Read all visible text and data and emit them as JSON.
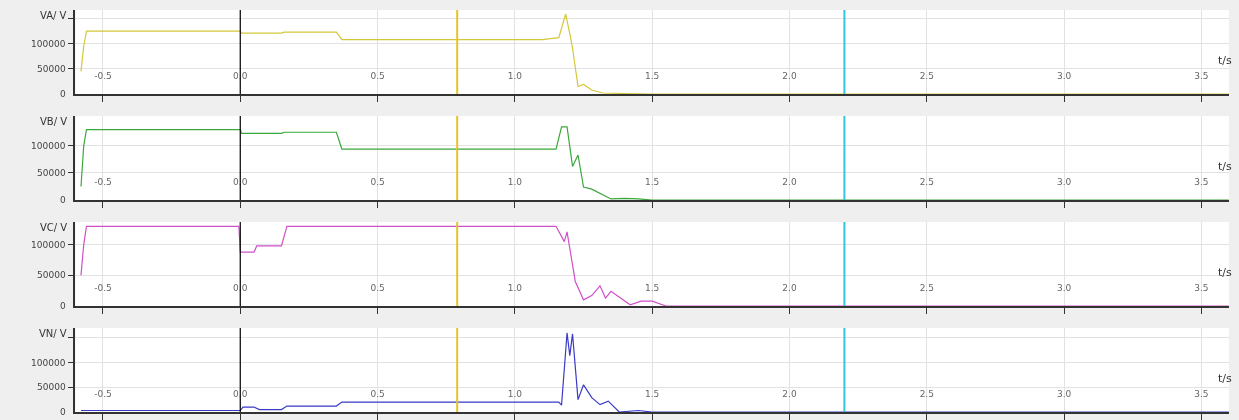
{
  "chart_data": [
    {
      "type": "line",
      "ylabel": "VA/ V",
      "xlabel": "t/s",
      "xlim": [
        -0.6,
        3.6
      ],
      "xticks": [
        -0.5,
        {
          "value": 0,
          "label": "0.0"
        },
        0.5,
        {
          "value": 1,
          "label": "1.0"
        },
        1.5,
        {
          "value": 2,
          "label": "2.0"
        },
        2.5,
        {
          "value": 3,
          "label": "3.0"
        },
        3.5
      ],
      "ylim": [
        0,
        167000
      ],
      "yticks": [
        0,
        50000,
        100000,
        {
          "value": 150000,
          "label": null
        }
      ],
      "grid": true,
      "series": [
        {
          "color": "#d4c83a",
          "x": [
            -0.58,
            -0.57,
            -0.56,
            0.0,
            0.005,
            0.15,
            0.16,
            0.35,
            0.37,
            1.1,
            1.13,
            1.16,
            1.185,
            1.2,
            1.21,
            1.23,
            1.25,
            1.28,
            1.32,
            1.4,
            1.5,
            3.6
          ],
          "values": [
            45000,
            95000,
            125000,
            125000,
            121000,
            121000,
            123000,
            123000,
            108000,
            108000,
            110000,
            112000,
            159000,
            120000,
            91000,
            15000,
            19000,
            8000,
            2000,
            1000,
            0,
            0
          ]
        }
      ],
      "ref_lines": [
        {
          "axis": "x",
          "value": 0,
          "color": "#000000"
        },
        {
          "axis": "x",
          "value": 0.79,
          "color": "#e6c229"
        },
        {
          "axis": "x",
          "value": 2.2,
          "color": "#35c3e0"
        }
      ]
    },
    {
      "type": "line",
      "ylabel": "VB/ V",
      "xlabel": "t/s",
      "xlim": [
        -0.6,
        3.6
      ],
      "xticks": [
        -0.5,
        {
          "value": 0,
          "label": "0.0"
        },
        0.5,
        {
          "value": 1,
          "label": "1.0"
        },
        1.5,
        {
          "value": 2,
          "label": "2.0"
        },
        2.5,
        {
          "value": 3,
          "label": "3.0"
        },
        3.5
      ],
      "ylim": [
        0,
        155000
      ],
      "yticks": [
        0,
        50000,
        100000
      ],
      "grid": true,
      "series": [
        {
          "color": "#3aa83a",
          "x": [
            -0.58,
            -0.57,
            -0.56,
            0.0,
            0.005,
            0.15,
            0.16,
            0.35,
            0.37,
            1.15,
            1.17,
            1.19,
            1.21,
            1.23,
            1.25,
            1.28,
            1.35,
            1.4,
            1.45,
            1.5,
            3.6
          ],
          "values": [
            25000,
            100000,
            130000,
            130000,
            123000,
            123000,
            125000,
            125000,
            94000,
            94000,
            135000,
            135000,
            62000,
            83000,
            24000,
            20000,
            2000,
            3000,
            2000,
            0,
            0
          ]
        }
      ],
      "ref_lines": [
        {
          "axis": "x",
          "value": 0,
          "color": "#000000"
        },
        {
          "axis": "x",
          "value": 0.79,
          "color": "#e6c229"
        },
        {
          "axis": "x",
          "value": 2.2,
          "color": "#35c3e0"
        }
      ]
    },
    {
      "type": "line",
      "ylabel": "VC/ V",
      "xlabel": "t/s",
      "xlim": [
        -0.6,
        3.6
      ],
      "xticks": [
        -0.5,
        {
          "value": 0,
          "label": "0.0"
        },
        0.5,
        {
          "value": 1,
          "label": "1.0"
        },
        1.5,
        {
          "value": 2,
          "label": "2.0"
        },
        2.5,
        {
          "value": 3,
          "label": "3.0"
        },
        3.5
      ],
      "ylim": [
        0,
        137000
      ],
      "yticks": [
        0,
        50000,
        100000
      ],
      "grid": true,
      "series": [
        {
          "color": "#d050c8",
          "x": [
            -0.58,
            -0.57,
            -0.56,
            -0.005,
            0.0,
            0.05,
            0.06,
            0.15,
            0.17,
            1.15,
            1.18,
            1.19,
            1.22,
            1.25,
            1.28,
            1.31,
            1.33,
            1.35,
            1.42,
            1.46,
            1.5,
            1.55,
            3.6
          ],
          "values": [
            50000,
            100000,
            130000,
            130000,
            88000,
            88000,
            98000,
            98000,
            130000,
            130000,
            105000,
            121000,
            40000,
            10000,
            17000,
            33000,
            13000,
            24000,
            2000,
            8000,
            8000,
            0,
            0
          ]
        }
      ],
      "ref_lines": [
        {
          "axis": "x",
          "value": 0,
          "color": "#000000"
        },
        {
          "axis": "x",
          "value": 0.79,
          "color": "#e6c229"
        },
        {
          "axis": "x",
          "value": 2.2,
          "color": "#35c3e0"
        }
      ]
    },
    {
      "type": "line",
      "ylabel": "VN/ V",
      "xlabel": "t/s",
      "xlim": [
        -0.6,
        3.6
      ],
      "xticks": [
        -0.5,
        {
          "value": 0,
          "label": "0.0"
        },
        0.5,
        {
          "value": 1,
          "label": "1.0"
        },
        1.5,
        {
          "value": 2,
          "label": "2.0"
        },
        2.5,
        {
          "value": 3,
          "label": "3.0"
        },
        3.5
      ],
      "ylim": [
        0,
        170000
      ],
      "yticks": [
        0,
        50000,
        100000,
        {
          "value": 150000,
          "label": null
        }
      ],
      "grid": true,
      "series": [
        {
          "color": "#3a3ac8",
          "x": [
            -0.58,
            0.0,
            0.01,
            0.05,
            0.07,
            0.15,
            0.17,
            0.35,
            0.37,
            1.16,
            1.17,
            1.19,
            1.2,
            1.21,
            1.23,
            1.25,
            1.28,
            1.31,
            1.34,
            1.38,
            1.45,
            1.5,
            3.6
          ],
          "values": [
            3000,
            3000,
            10000,
            10000,
            5000,
            5000,
            12000,
            12000,
            20000,
            20000,
            14000,
            160000,
            114000,
            158000,
            25000,
            55000,
            29000,
            15000,
            22000,
            0,
            3000,
            0,
            0
          ]
        }
      ],
      "ref_lines": [
        {
          "axis": "x",
          "value": 0,
          "color": "#000000"
        },
        {
          "axis": "x",
          "value": 0.79,
          "color": "#e6c229"
        },
        {
          "axis": "x",
          "value": 2.2,
          "color": "#35c3e0"
        }
      ]
    }
  ]
}
